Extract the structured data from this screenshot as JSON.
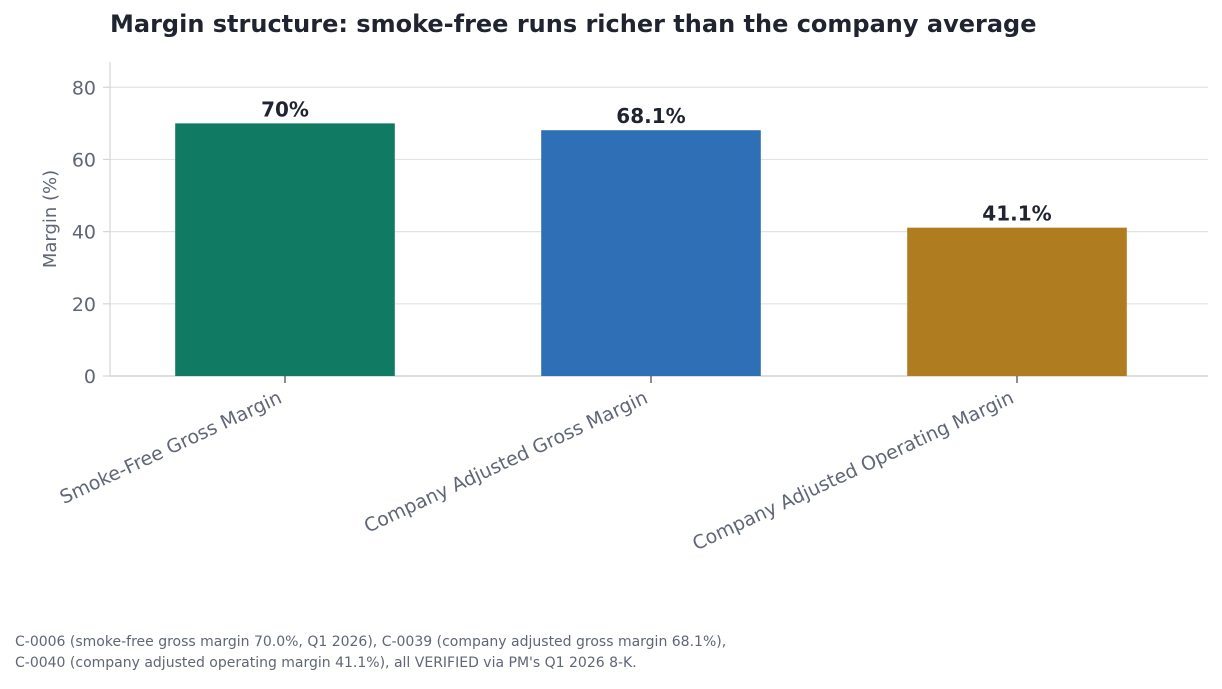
{
  "chart_data": {
    "type": "bar",
    "title": "Margin structure: smoke-free runs richer than the company average",
    "ylabel": "Margin (%)",
    "xlabel": "",
    "ylim": [
      0,
      87
    ],
    "yticks": [
      0,
      20,
      40,
      60,
      80
    ],
    "grid": true,
    "categories": [
      "Smoke-Free Gross Margin",
      "Company Adjusted Gross Margin",
      "Company Adjusted Operating Margin"
    ],
    "values": [
      70.0,
      68.1,
      41.1
    ],
    "value_labels": [
      "70%",
      "68.1%",
      "41.1%"
    ],
    "colors": [
      "#107a62",
      "#2e6fb5",
      "#b07c20"
    ]
  },
  "footnote": {
    "line1": "C-0006 (smoke-free gross margin 70.0%, Q1 2026), C-0039 (company adjusted gross margin 68.1%),",
    "line2": "C-0040 (company adjusted operating margin 41.1%), all VERIFIED via PM's Q1 2026 8-K."
  }
}
